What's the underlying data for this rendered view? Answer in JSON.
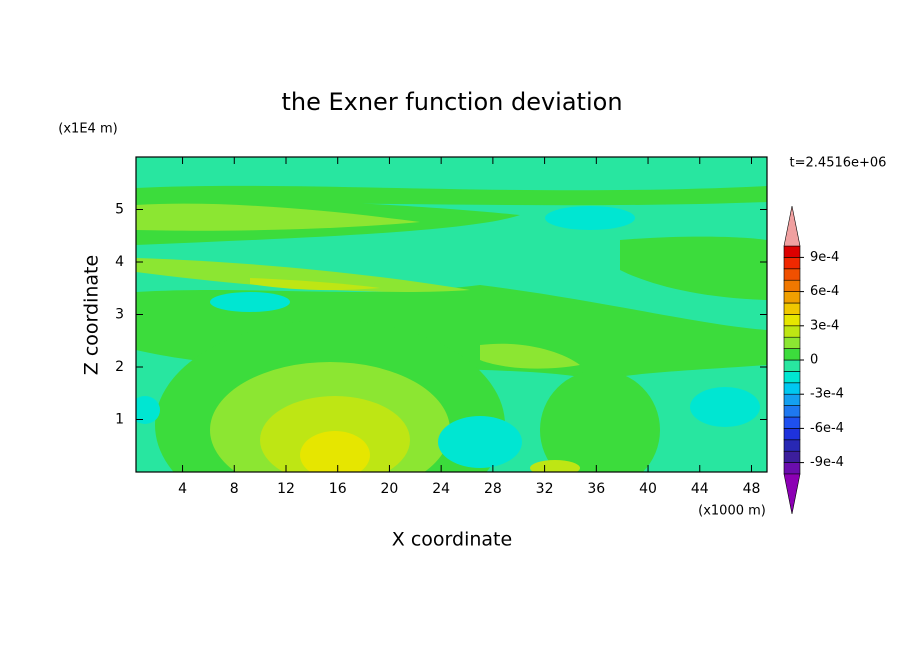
{
  "chart_data": {
    "type": "contour",
    "title": "the Exner function deviation",
    "xlabel": "X coordinate",
    "ylabel": "Z coordinate",
    "xunit": "(x1000 m)",
    "yunit": "(x1E4 m)",
    "time_label": "t=2.4516e+06",
    "xlim": [
      0.4,
      49.2
    ],
    "xticks": [
      4,
      8,
      12,
      16,
      20,
      24,
      28,
      32,
      36,
      40,
      44,
      48
    ],
    "ylim": [
      0,
      6
    ],
    "yticks": [
      1,
      2,
      3,
      4,
      5
    ],
    "colorbar": {
      "levels": [
        -0.001,
        -0.0009,
        -0.0008,
        -0.0007,
        -0.0006,
        -0.0005,
        -0.0004,
        -0.0003,
        -0.0002,
        -0.0001,
        0,
        0.0001,
        0.0002,
        0.0003,
        0.0004,
        0.0005,
        0.0006,
        0.0007,
        0.0008,
        0.0009,
        0.001
      ],
      "colors": [
        "#6a0dad",
        "#3c1e9c",
        "#2828b4",
        "#1e32dc",
        "#1e50f0",
        "#1e78f0",
        "#14a0f0",
        "#00c8f0",
        "#00e6d2",
        "#28e6a0",
        "#3cdc3c",
        "#8ce632",
        "#bee614",
        "#e6e600",
        "#f0c800",
        "#f0a000",
        "#f07800",
        "#f05000",
        "#f02800",
        "#dc0000"
      ],
      "under_color": "#8c00b4",
      "over_color": "#f0a0a0",
      "ticks": [
        {
          "value": -0.0009,
          "label": "-9e-4"
        },
        {
          "value": -0.0006,
          "label": "-6e-4"
        },
        {
          "value": -0.0003,
          "label": "-3e-4"
        },
        0,
        {
          "value": 0.0003,
          "label": "3e-4"
        },
        {
          "value": 0.0006,
          "label": "6e-4"
        },
        {
          "value": 0.0009,
          "label": "9e-4"
        }
      ]
    }
  }
}
